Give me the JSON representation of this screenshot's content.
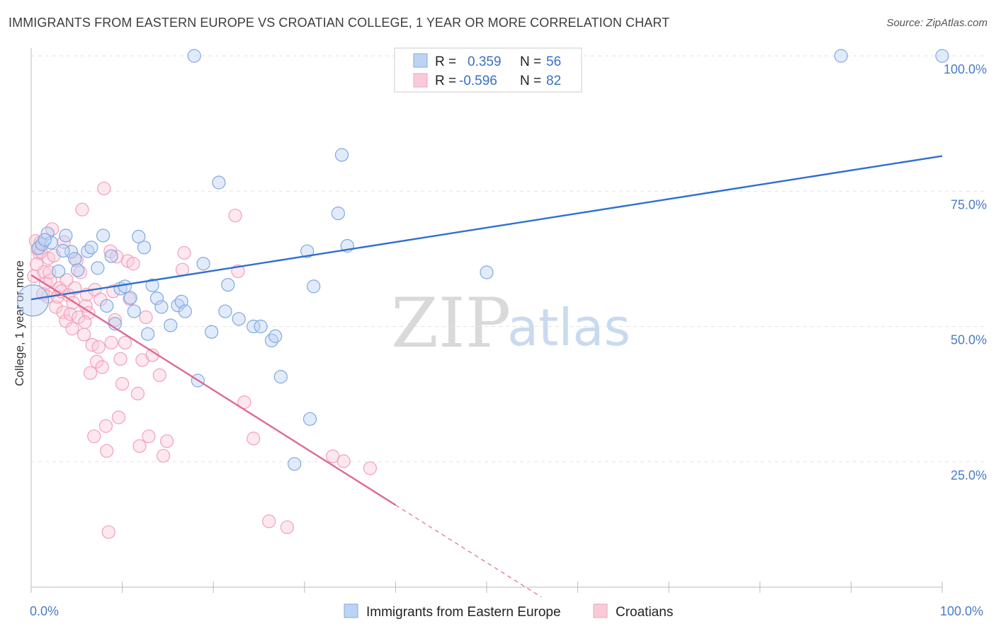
{
  "title": "IMMIGRANTS FROM EASTERN EUROPE VS CROATIAN COLLEGE, 1 YEAR OR MORE CORRELATION CHART",
  "source": "Source: ZipAtlas.com",
  "watermark": {
    "zip": "ZIP",
    "atlas": "atlas"
  },
  "chart_data": {
    "type": "scatter",
    "xlabel": "",
    "ylabel": "College, 1 year or more",
    "xlim": [
      0,
      100
    ],
    "ylim": [
      0,
      100
    ],
    "x_tick_labels": {
      "left": "0.0%",
      "right": "100.0%"
    },
    "y_ticks": [
      {
        "value": 100,
        "label": "100.0%"
      },
      {
        "value": 75,
        "label": "75.0%"
      },
      {
        "value": 50,
        "label": "50.0%"
      },
      {
        "value": 25,
        "label": "25.0%"
      }
    ],
    "grid": "horizontal dashed",
    "legend_stats": [
      {
        "series": "Immigrants from Eastern Europe",
        "r_label": "R =",
        "r_value": "0.359",
        "n_label": "N =",
        "n_value": "56",
        "color": "#7fa8e0"
      },
      {
        "series": "Croatians",
        "r_label": "R =",
        "r_value": "-0.596",
        "n_label": "N =",
        "n_value": "82",
        "color": "#f2a0bb"
      }
    ],
    "series": [
      {
        "name": "Immigrants from Eastern Europe",
        "color": "#7fa8e0",
        "trend_color": "#2f6fd0",
        "trend": {
          "x0": 0,
          "y0": 55.0,
          "x1": 100,
          "y1": 81.5
        },
        "points": [
          [
            0.2,
            54.8
          ],
          [
            0.8,
            64.5
          ],
          [
            1.2,
            65.2
          ],
          [
            1.8,
            67.2
          ],
          [
            2.2,
            65.5
          ],
          [
            3.0,
            60.2
          ],
          [
            3.8,
            66.8
          ],
          [
            4.4,
            63.8
          ],
          [
            4.8,
            62.5
          ],
          [
            5.1,
            60.4
          ],
          [
            6.2,
            63.9
          ],
          [
            6.6,
            64.6
          ],
          [
            7.3,
            60.8
          ],
          [
            7.9,
            66.8
          ],
          [
            8.3,
            53.8
          ],
          [
            8.8,
            63.0
          ],
          [
            9.2,
            50.5
          ],
          [
            9.8,
            57.0
          ],
          [
            10.3,
            57.4
          ],
          [
            10.9,
            55.3
          ],
          [
            11.3,
            52.8
          ],
          [
            11.8,
            66.6
          ],
          [
            12.4,
            64.6
          ],
          [
            12.8,
            48.6
          ],
          [
            13.3,
            57.6
          ],
          [
            13.8,
            55.2
          ],
          [
            14.3,
            53.6
          ],
          [
            15.3,
            50.2
          ],
          [
            16.1,
            53.9
          ],
          [
            16.5,
            54.6
          ],
          [
            16.9,
            52.8
          ],
          [
            17.9,
            100
          ],
          [
            18.3,
            40.0
          ],
          [
            18.9,
            61.6
          ],
          [
            19.8,
            49.0
          ],
          [
            20.6,
            76.6
          ],
          [
            21.3,
            52.8
          ],
          [
            21.6,
            57.7
          ],
          [
            22.8,
            51.4
          ],
          [
            24.4,
            50.0
          ],
          [
            25.2,
            50.0
          ],
          [
            26.4,
            47.4
          ],
          [
            26.8,
            48.2
          ],
          [
            27.4,
            40.7
          ],
          [
            28.9,
            24.6
          ],
          [
            30.3,
            63.9
          ],
          [
            30.6,
            32.9
          ],
          [
            31.0,
            57.4
          ],
          [
            33.7,
            70.9
          ],
          [
            34.1,
            81.7
          ],
          [
            34.7,
            64.9
          ],
          [
            50.0,
            60.0
          ],
          [
            88.9,
            100
          ],
          [
            100,
            100
          ],
          [
            1.5,
            66.0
          ],
          [
            3.5,
            64.0
          ]
        ]
      },
      {
        "name": "Croatians",
        "color": "#f2a0bb",
        "trend_color": "#e06a96",
        "trend": {
          "x0": 0,
          "y0": 59.5,
          "x1": 40.0,
          "y1": 17.0
        },
        "trend_dashed": {
          "x0": 40.0,
          "y0": 17.0,
          "x1": 56.0,
          "y1": 0.0
        },
        "points": [
          [
            0.3,
            59.3
          ],
          [
            0.5,
            65.8
          ],
          [
            0.7,
            64.3
          ],
          [
            0.9,
            63.5
          ],
          [
            1.1,
            63.8
          ],
          [
            1.4,
            60.1
          ],
          [
            1.6,
            58.0
          ],
          [
            1.8,
            55.5
          ],
          [
            1.9,
            62.6
          ],
          [
            2.1,
            58.5
          ],
          [
            2.3,
            68.0
          ],
          [
            2.5,
            63.1
          ],
          [
            2.7,
            53.6
          ],
          [
            2.9,
            55.5
          ],
          [
            3.1,
            57.1
          ],
          [
            3.3,
            56.5
          ],
          [
            3.5,
            52.6
          ],
          [
            3.6,
            65.6
          ],
          [
            3.8,
            51.0
          ],
          [
            3.9,
            58.6
          ],
          [
            4.1,
            55.8
          ],
          [
            4.3,
            52.3
          ],
          [
            4.5,
            49.6
          ],
          [
            4.6,
            54.4
          ],
          [
            4.8,
            57.1
          ],
          [
            5.0,
            62.2
          ],
          [
            5.2,
            51.7
          ],
          [
            5.4,
            60.0
          ],
          [
            5.6,
            71.6
          ],
          [
            5.8,
            48.5
          ],
          [
            6.0,
            53.8
          ],
          [
            6.1,
            55.9
          ],
          [
            6.3,
            52.5
          ],
          [
            6.5,
            41.4
          ],
          [
            6.7,
            46.6
          ],
          [
            6.9,
            29.7
          ],
          [
            7.0,
            56.8
          ],
          [
            7.2,
            43.5
          ],
          [
            7.4,
            46.2
          ],
          [
            7.6,
            55.0
          ],
          [
            7.8,
            42.5
          ],
          [
            8.0,
            75.5
          ],
          [
            8.2,
            31.6
          ],
          [
            8.3,
            27.0
          ],
          [
            8.5,
            12.0
          ],
          [
            8.7,
            63.9
          ],
          [
            8.8,
            47.0
          ],
          [
            9.0,
            56.5
          ],
          [
            9.2,
            51.2
          ],
          [
            9.4,
            62.9
          ],
          [
            9.6,
            33.2
          ],
          [
            9.8,
            44.0
          ],
          [
            10.0,
            39.4
          ],
          [
            10.3,
            47.0
          ],
          [
            10.6,
            62.1
          ],
          [
            11.2,
            61.6
          ],
          [
            11.7,
            37.6
          ],
          [
            11.9,
            27.9
          ],
          [
            12.2,
            43.8
          ],
          [
            12.6,
            51.7
          ],
          [
            12.9,
            29.7
          ],
          [
            13.3,
            44.7
          ],
          [
            14.1,
            41.0
          ],
          [
            14.5,
            26.1
          ],
          [
            14.9,
            28.8
          ],
          [
            16.6,
            60.5
          ],
          [
            16.8,
            63.6
          ],
          [
            22.4,
            70.5
          ],
          [
            22.7,
            60.2
          ],
          [
            23.4,
            36.0
          ],
          [
            24.4,
            29.3
          ],
          [
            26.1,
            14.0
          ],
          [
            28.1,
            12.9
          ],
          [
            33.1,
            26.0
          ],
          [
            34.3,
            25.1
          ],
          [
            37.2,
            23.8
          ],
          [
            1.0,
            65.5
          ],
          [
            2.0,
            60.0
          ],
          [
            0.6,
            61.5
          ],
          [
            1.3,
            56.0
          ],
          [
            5.9,
            50.8
          ],
          [
            10.8,
            55.1
          ]
        ]
      }
    ]
  }
}
